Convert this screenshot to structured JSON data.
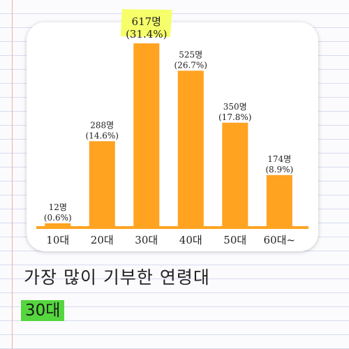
{
  "colors": {
    "bar": "#ffa321",
    "highlight": "#f6ff6a",
    "answer_highlight": "#55d63e"
  },
  "caption": "가장 많이 기부한 연령대",
  "answer": "30대",
  "chart_data": {
    "type": "bar",
    "title": "",
    "xlabel": "",
    "ylabel": "",
    "ylim": [
      0,
      650
    ],
    "grid": false,
    "categories": [
      "10대",
      "20대",
      "30대",
      "40대",
      "50대",
      "60대~"
    ],
    "values": [
      12,
      288,
      617,
      525,
      350,
      174
    ],
    "value_labels": [
      "12명",
      "288명",
      "617명",
      "525명",
      "350명",
      "174명"
    ],
    "percent_labels": [
      "(0.6%)",
      "(14.6%)",
      "(31.4%)",
      "(26.7%)",
      "(17.8%)",
      "(8.9%)"
    ],
    "highlight_index": 2
  }
}
